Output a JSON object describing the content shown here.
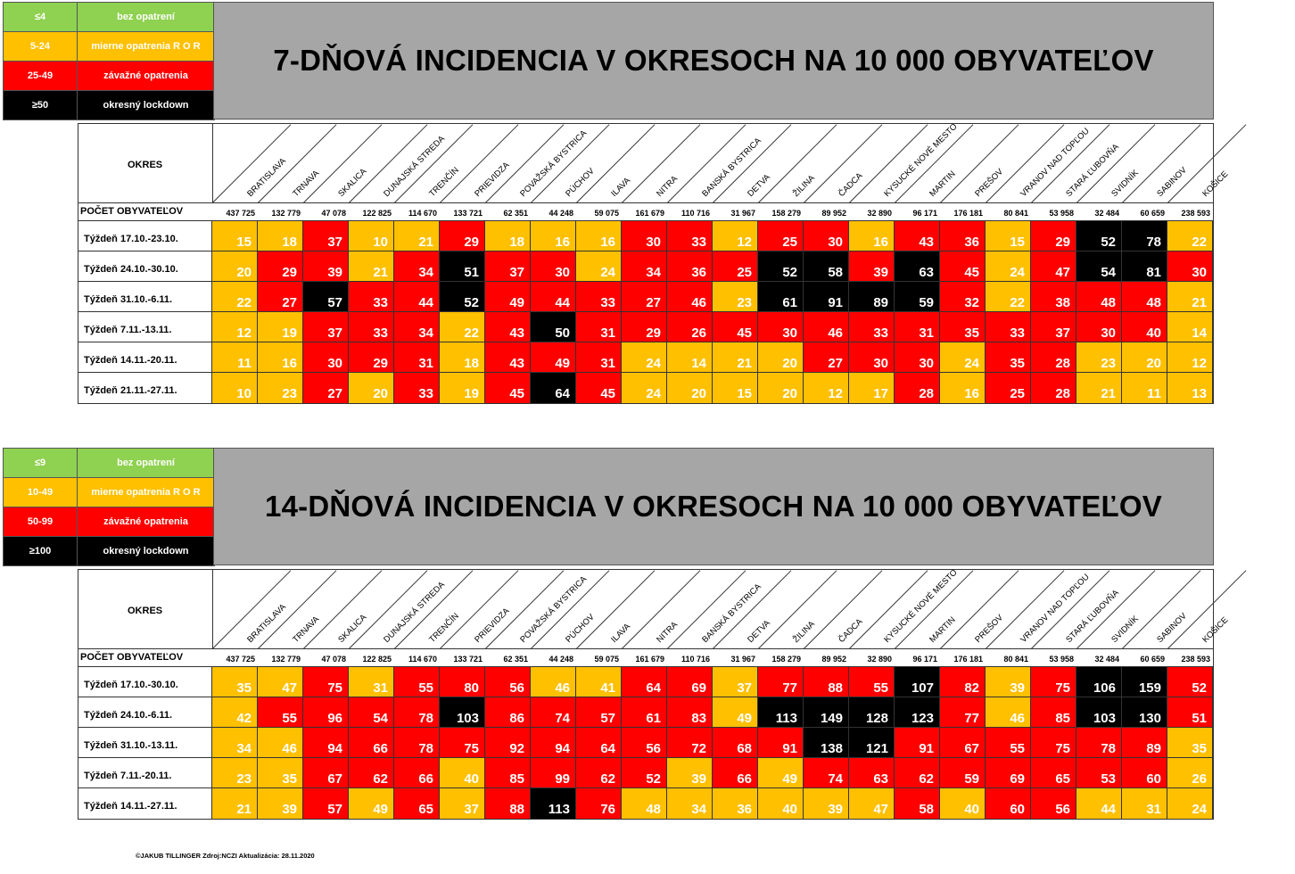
{
  "colors": {
    "green": "#8fd150",
    "orange": "#ffc000",
    "red": "#ff0000",
    "black": "#000000",
    "gray": "#a6a6a6"
  },
  "districts": [
    "BRATISLAVA",
    "TRNAVA",
    "SKALICA",
    "DUNAJSKÁ STREDA",
    "TRENČÍN",
    "PRIEVIDZA",
    "POVAŽSKÁ BYSTRICA",
    "PÚCHOV",
    "ILAVA",
    "NITRA",
    "BANSKÁ BYSTRICA",
    "DETVA",
    "ŽILINA",
    "ČADCA",
    "KYSUCKÉ NOVÉ MESTO",
    "MARTIN",
    "PREŠOV",
    "VRANOV NAD TOPĽOU",
    "STARÁ ĽUBOVŇA",
    "SVIDNÍK",
    "SABINOV",
    "KOŠICE"
  ],
  "population_label": "POČET OBYVATEĽOV",
  "okres_label": "OKRES",
  "population": [
    "437 725",
    "132 779",
    "47 078",
    "122 825",
    "114 670",
    "133 721",
    "62 351",
    "44 248",
    "59 075",
    "161 679",
    "110 716",
    "31 967",
    "158 279",
    "89 952",
    "32 890",
    "96 171",
    "176 181",
    "80 841",
    "53 958",
    "32 484",
    "60 659",
    "238 593"
  ],
  "sections": [
    {
      "title": "7-DŇOVÁ INCIDENCIA V OKRESOCH NA 10 000 OBYVATEĽOV",
      "legend": [
        {
          "range": "≤4",
          "label": "bez opatrení",
          "color": "green"
        },
        {
          "range": "5-24",
          "label": "mierne opatrenia R O R",
          "color": "orange"
        },
        {
          "range": "25-49",
          "label": "závažné opatrenia",
          "color": "red"
        },
        {
          "range": "≥50",
          "label": "okresný lockdown",
          "color": "black"
        }
      ],
      "thresholds": [
        4,
        24,
        49
      ],
      "weeks": [
        "Týždeň 17.10.-23.10.",
        "Týždeň 24.10.-30.10.",
        "Týždeň 31.10.-6.11.",
        "Týždeň 7.11.-13.11.",
        "Týždeň 14.11.-20.11.",
        "Týždeň 21.11.-27.11."
      ],
      "values": [
        [
          15,
          18,
          37,
          10,
          21,
          29,
          18,
          16,
          16,
          30,
          33,
          12,
          25,
          30,
          16,
          43,
          36,
          15,
          29,
          52,
          78,
          22
        ],
        [
          20,
          29,
          39,
          21,
          34,
          51,
          37,
          30,
          24,
          34,
          36,
          25,
          52,
          58,
          39,
          63,
          45,
          24,
          47,
          54,
          81,
          30
        ],
        [
          22,
          27,
          57,
          33,
          44,
          52,
          49,
          44,
          33,
          27,
          46,
          23,
          61,
          91,
          89,
          59,
          32,
          22,
          38,
          48,
          48,
          21
        ],
        [
          12,
          19,
          37,
          33,
          34,
          22,
          43,
          50,
          31,
          29,
          26,
          45,
          30,
          46,
          33,
          31,
          35,
          33,
          37,
          30,
          40,
          14
        ],
        [
          11,
          16,
          30,
          29,
          31,
          18,
          43,
          49,
          31,
          24,
          14,
          21,
          20,
          27,
          30,
          30,
          24,
          35,
          28,
          23,
          20,
          12
        ],
        [
          10,
          23,
          27,
          20,
          33,
          19,
          45,
          64,
          45,
          24,
          20,
          15,
          20,
          12,
          17,
          28,
          16,
          25,
          28,
          21,
          11,
          13
        ]
      ]
    },
    {
      "title": "14-DŇOVÁ INCIDENCIA V OKRESOCH NA 10 000 OBYVATEĽOV",
      "legend": [
        {
          "range": "≤9",
          "label": "bez opatrení",
          "color": "green"
        },
        {
          "range": "10-49",
          "label": "mierne opatrenia R O R",
          "color": "orange"
        },
        {
          "range": "50-99",
          "label": "závažné opatrenia",
          "color": "red"
        },
        {
          "range": "≥100",
          "label": "okresný lockdown",
          "color": "black"
        }
      ],
      "thresholds": [
        9,
        49,
        99
      ],
      "weeks": [
        "Týždeň 17.10.-30.10.",
        "Týždeň 24.10.-6.11.",
        "Týždeň 31.10.-13.11.",
        "Týždeň 7.11.-20.11.",
        "Týždeň 14.11.-27.11."
      ],
      "values": [
        [
          35,
          47,
          75,
          31,
          55,
          80,
          56,
          46,
          41,
          64,
          69,
          37,
          77,
          88,
          55,
          107,
          82,
          39,
          75,
          106,
          159,
          52
        ],
        [
          42,
          55,
          96,
          54,
          78,
          103,
          86,
          74,
          57,
          61,
          83,
          49,
          113,
          149,
          128,
          123,
          77,
          46,
          85,
          103,
          130,
          51
        ],
        [
          34,
          46,
          94,
          66,
          78,
          75,
          92,
          94,
          64,
          56,
          72,
          68,
          91,
          138,
          121,
          91,
          67,
          55,
          75,
          78,
          89,
          35
        ],
        [
          23,
          35,
          67,
          62,
          66,
          40,
          85,
          99,
          62,
          52,
          39,
          66,
          49,
          74,
          63,
          62,
          59,
          69,
          65,
          53,
          60,
          26
        ],
        [
          21,
          39,
          57,
          49,
          65,
          37,
          88,
          113,
          76,
          48,
          34,
          36,
          40,
          39,
          47,
          58,
          40,
          60,
          56,
          44,
          31,
          24
        ]
      ]
    }
  ],
  "footer": "©JAKUB TILLINGER   Zdroj:NCZI   Aktualizácia: 28.11.2020"
}
